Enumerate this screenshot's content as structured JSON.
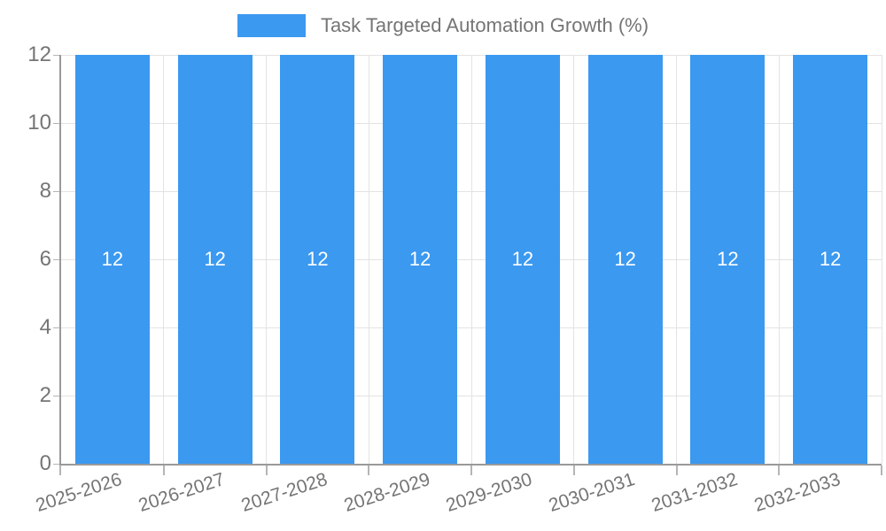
{
  "chart_data": {
    "type": "bar",
    "title": "",
    "categories": [
      "2025-2026",
      "2026-2027",
      "2027-2028",
      "2028-2029",
      "2029-2030",
      "2030-2031",
      "2031-2032",
      "2032-2033"
    ],
    "series": [
      {
        "name": "Task Targeted Automation Growth (%)",
        "values": [
          12,
          12,
          12,
          12,
          12,
          12,
          12,
          12
        ]
      }
    ],
    "xlabel": "",
    "ylabel": "",
    "ylim": [
      0,
      12
    ],
    "yticks": [
      0,
      2,
      4,
      6,
      8,
      10,
      12
    ],
    "grid": true,
    "legend_position": "top",
    "value_labels_shown": true
  },
  "colors": {
    "bar": "#3B99F0",
    "text": "#757575",
    "value_label_text": "#FFFFFF",
    "axis": "#9A9A9A",
    "tick": "#B5B5B5",
    "grid": "#E3E3E3",
    "background": "#FFFFFF"
  }
}
